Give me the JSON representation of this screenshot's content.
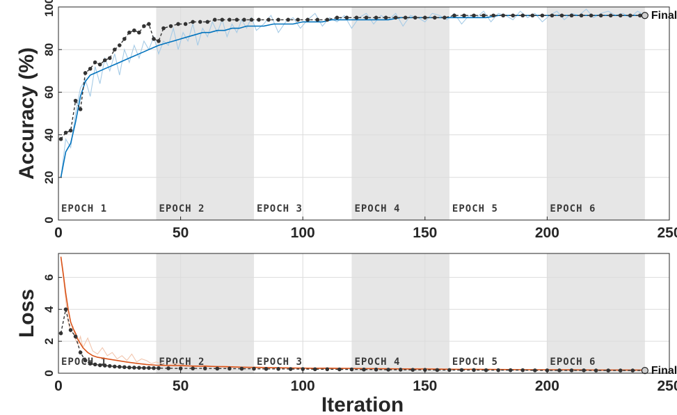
{
  "figure": {
    "xlabel": "Iteration",
    "colors": {
      "accuracy_smooth": "#0072bd",
      "accuracy_raw": "#a6cbe6",
      "loss_smooth": "#d95319",
      "loss_raw": "#f2c6ae",
      "validation": "#333333",
      "epoch_shade": "#e6e6e6",
      "grid": "#dcdcdc"
    }
  },
  "chart_data": [
    {
      "type": "line",
      "ylabel": "Accuracy (%)",
      "xlim": [
        0,
        250
      ],
      "ylim": [
        0,
        100
      ],
      "xticks": [
        0,
        50,
        100,
        150,
        200,
        250
      ],
      "yticks": [
        0,
        20,
        40,
        60,
        80,
        100
      ],
      "grid": true,
      "epochs": [
        {
          "label": "EPOCH 1",
          "start": 0,
          "end": 40
        },
        {
          "label": "EPOCH 2",
          "start": 40,
          "end": 80
        },
        {
          "label": "EPOCH 3",
          "start": 80,
          "end": 120
        },
        {
          "label": "EPOCH 4",
          "start": 120,
          "end": 160
        },
        {
          "label": "EPOCH 5",
          "start": 160,
          "end": 200
        },
        {
          "label": "EPOCH 6",
          "start": 200,
          "end": 240
        }
      ],
      "series": [
        {
          "role": "raw",
          "x": [
            1,
            3,
            5,
            7,
            9,
            11,
            13,
            15,
            17,
            19,
            21,
            23,
            25,
            27,
            29,
            31,
            33,
            35,
            37,
            39,
            41,
            43,
            45,
            47,
            49,
            51,
            53,
            55,
            57,
            59,
            61,
            63,
            65,
            67,
            69,
            71,
            73,
            75,
            77,
            79,
            81,
            84,
            87,
            90,
            93,
            96,
            99,
            102,
            105,
            108,
            111,
            114,
            117,
            120,
            123,
            126,
            129,
            132,
            135,
            138,
            141,
            144,
            147,
            150,
            153,
            156,
            159,
            162,
            165,
            168,
            171,
            174,
            177,
            180,
            183,
            186,
            189,
            192,
            195,
            198,
            201,
            204,
            207,
            210,
            213,
            216,
            219,
            222,
            225,
            228,
            231,
            234,
            237,
            240
          ],
          "y": [
            20,
            38,
            34,
            50,
            62,
            66,
            58,
            72,
            64,
            76,
            70,
            78,
            68,
            80,
            74,
            82,
            76,
            84,
            80,
            86,
            78,
            84,
            82,
            90,
            80,
            88,
            84,
            92,
            82,
            90,
            86,
            93,
            88,
            94,
            86,
            92,
            88,
            94,
            90,
            95,
            89,
            92,
            96,
            88,
            93,
            95,
            90,
            94,
            97,
            91,
            95,
            93,
            96,
            90,
            95,
            97,
            92,
            96,
            94,
            97,
            91,
            96,
            95,
            93,
            97,
            96,
            94,
            97,
            92,
            96,
            95,
            98,
            93,
            97,
            96,
            94,
            98,
            95,
            97,
            93,
            96,
            98,
            94,
            97,
            96,
            99,
            95,
            97,
            98,
            96,
            97,
            95,
            98,
            96
          ]
        },
        {
          "role": "smoothed",
          "x": [
            1,
            3,
            5,
            7,
            9,
            11,
            13,
            15,
            17,
            19,
            21,
            23,
            25,
            27,
            29,
            31,
            33,
            35,
            37,
            39,
            41,
            44,
            47,
            50,
            53,
            56,
            59,
            62,
            65,
            68,
            71,
            74,
            77,
            80,
            84,
            88,
            92,
            96,
            100,
            104,
            108,
            112,
            116,
            120,
            125,
            130,
            135,
            140,
            145,
            150,
            155,
            160,
            165,
            170,
            175,
            180,
            185,
            190,
            195,
            200,
            205,
            210,
            215,
            220,
            225,
            230,
            235,
            240
          ],
          "y": [
            20,
            32,
            36,
            46,
            58,
            65,
            68,
            69,
            70,
            71,
            72,
            73,
            74,
            75,
            76,
            77,
            78,
            79,
            80,
            81,
            82,
            83,
            84,
            85,
            86,
            87,
            88,
            88,
            89,
            89,
            90,
            90,
            91,
            91,
            91,
            92,
            92,
            92,
            93,
            93,
            93,
            94,
            94,
            94,
            94,
            94,
            94,
            95,
            95,
            95,
            95,
            95,
            95,
            95,
            95,
            96,
            96,
            96,
            96,
            96,
            96,
            96,
            96,
            96,
            96,
            96,
            96,
            96
          ]
        },
        {
          "role": "validation",
          "x": [
            1,
            3,
            5,
            7,
            9,
            11,
            13,
            15,
            17,
            19,
            21,
            23,
            25,
            27,
            29,
            31,
            33,
            35,
            37,
            39,
            41,
            43,
            46,
            49,
            52,
            55,
            58,
            61,
            64,
            67,
            70,
            73,
            76,
            79,
            82,
            86,
            90,
            94,
            98,
            102,
            106,
            110,
            114,
            118,
            122,
            126,
            130,
            134,
            138,
            142,
            146,
            150,
            154,
            158,
            162,
            166,
            170,
            174,
            178,
            182,
            186,
            190,
            194,
            198,
            202,
            206,
            210,
            214,
            218,
            222,
            226,
            230,
            234,
            238,
            240
          ],
          "y": [
            38,
            41,
            42,
            56,
            52,
            69,
            71,
            74,
            73,
            75,
            76,
            80,
            82,
            85,
            88,
            89,
            88,
            91,
            92,
            85,
            84,
            90,
            91,
            92,
            92,
            93,
            93,
            93,
            94,
            94,
            94,
            94,
            94,
            94,
            94,
            94,
            94,
            94,
            94,
            94,
            94,
            94,
            95,
            95,
            95,
            95,
            95,
            95,
            95,
            95,
            95,
            95,
            95,
            95,
            96,
            96,
            96,
            96,
            96,
            96,
            96,
            96,
            96,
            96,
            96,
            96,
            96,
            96,
            96,
            96,
            96,
            96,
            96,
            96,
            96
          ]
        }
      ],
      "annotation": "Final"
    },
    {
      "type": "line",
      "ylabel": "Loss",
      "xlim": [
        0,
        250
      ],
      "ylim": [
        0,
        7.5
      ],
      "xticks": [
        0,
        50,
        100,
        150,
        200,
        250
      ],
      "yticks": [
        0,
        2,
        4,
        6
      ],
      "grid": true,
      "epochs": [
        {
          "label": "EPOCH 1",
          "start": 0,
          "end": 40
        },
        {
          "label": "EPOCH 2",
          "start": 40,
          "end": 80
        },
        {
          "label": "EPOCH 3",
          "start": 80,
          "end": 120
        },
        {
          "label": "EPOCH 4",
          "start": 120,
          "end": 160
        },
        {
          "label": "EPOCH 5",
          "start": 160,
          "end": 200
        },
        {
          "label": "EPOCH 6",
          "start": 200,
          "end": 240
        }
      ],
      "series": [
        {
          "role": "raw",
          "x": [
            1,
            2,
            3,
            4,
            5,
            6,
            7,
            8,
            9,
            10,
            12,
            14,
            16,
            18,
            20,
            22,
            24,
            26,
            28,
            30,
            32,
            34,
            36,
            38,
            40,
            44,
            48,
            52,
            56,
            60,
            64,
            68,
            72,
            76,
            80,
            90,
            100,
            110,
            120,
            130,
            140,
            150,
            160,
            170,
            180,
            190,
            200,
            210,
            220,
            230,
            240
          ],
          "y": [
            7.2,
            6.0,
            4.6,
            3.2,
            2.6,
            2.9,
            2.1,
            1.8,
            2.3,
            1.6,
            2.2,
            1.4,
            1.2,
            1.6,
            1.1,
            1.3,
            0.9,
            1.1,
            0.8,
            1.2,
            0.7,
            0.9,
            0.8,
            0.6,
            0.7,
            0.5,
            0.6,
            0.5,
            0.4,
            0.5,
            0.4,
            0.45,
            0.4,
            0.35,
            0.4,
            0.35,
            0.3,
            0.35,
            0.3,
            0.3,
            0.28,
            0.3,
            0.25,
            0.27,
            0.25,
            0.24,
            0.22,
            0.23,
            0.21,
            0.2,
            0.2
          ]
        },
        {
          "role": "smoothed",
          "x": [
            1,
            2,
            3,
            4,
            5,
            6,
            7,
            8,
            10,
            12,
            14,
            16,
            18,
            20,
            24,
            28,
            32,
            36,
            40,
            45,
            50,
            55,
            60,
            65,
            70,
            75,
            80,
            90,
            100,
            110,
            120,
            130,
            140,
            150,
            160,
            170,
            180,
            190,
            200,
            210,
            220,
            230,
            240
          ],
          "y": [
            7.3,
            6.2,
            5.0,
            4.0,
            3.2,
            2.8,
            2.5,
            2.1,
            1.6,
            1.3,
            1.1,
            1.0,
            0.95,
            0.9,
            0.8,
            0.7,
            0.62,
            0.55,
            0.5,
            0.48,
            0.47,
            0.45,
            0.44,
            0.42,
            0.4,
            0.38,
            0.36,
            0.34,
            0.32,
            0.3,
            0.3,
            0.28,
            0.27,
            0.26,
            0.25,
            0.24,
            0.23,
            0.22,
            0.22,
            0.21,
            0.2,
            0.2,
            0.2
          ]
        },
        {
          "role": "validation",
          "x": [
            1,
            3,
            5,
            7,
            9,
            11,
            13,
            15,
            17,
            19,
            21,
            23,
            25,
            27,
            29,
            31,
            33,
            35,
            37,
            39,
            41,
            45,
            50,
            55,
            60,
            65,
            70,
            75,
            80,
            85,
            90,
            95,
            100,
            105,
            110,
            115,
            120,
            125,
            130,
            135,
            140,
            145,
            150,
            155,
            160,
            165,
            170,
            175,
            180,
            185,
            190,
            195,
            200,
            205,
            210,
            215,
            220,
            225,
            230,
            235,
            240
          ],
          "y": [
            2.5,
            4.0,
            2.7,
            2.3,
            1.3,
            0.8,
            0.6,
            0.55,
            0.5,
            0.48,
            0.45,
            0.42,
            0.4,
            0.38,
            0.36,
            0.35,
            0.34,
            0.33,
            0.33,
            0.32,
            0.32,
            0.31,
            0.3,
            0.3,
            0.3,
            0.29,
            0.29,
            0.28,
            0.28,
            0.27,
            0.27,
            0.26,
            0.26,
            0.25,
            0.25,
            0.24,
            0.24,
            0.23,
            0.23,
            0.22,
            0.22,
            0.21,
            0.21,
            0.2,
            0.2,
            0.2,
            0.2,
            0.19,
            0.19,
            0.19,
            0.19,
            0.18,
            0.18,
            0.18,
            0.18,
            0.18,
            0.17,
            0.17,
            0.17,
            0.17,
            0.17
          ]
        }
      ],
      "annotation": "Final"
    }
  ]
}
